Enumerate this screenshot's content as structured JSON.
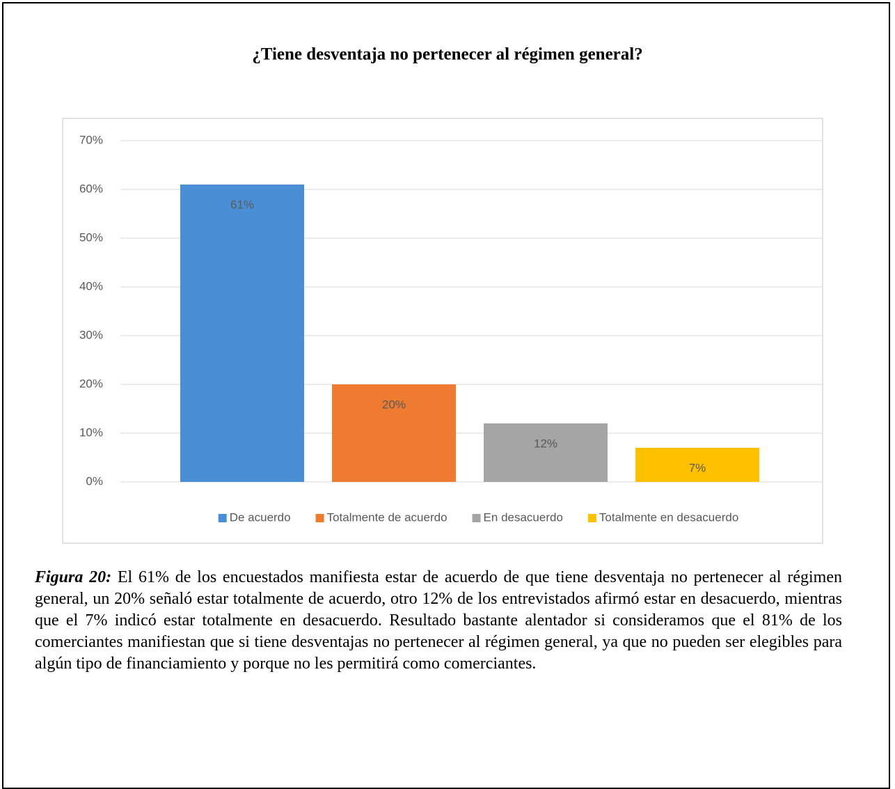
{
  "chart_data": {
    "type": "bar",
    "title": "¿Tiene desventaja no pertenecer al régimen general?",
    "categories": [
      "De acuerdo",
      "Totalmente de acuerdo",
      "En desacuerdo",
      "Totalmente en desacuerdo"
    ],
    "values": [
      61,
      20,
      12,
      7
    ],
    "value_labels": [
      "61%",
      "20%",
      "12%",
      "7%"
    ],
    "colors": [
      "#4a8fd6",
      "#ee7b30",
      "#a5a5a5",
      "#ffc000"
    ],
    "ylim": [
      0,
      70
    ],
    "yticks": [
      {
        "value": 0,
        "label": "0%"
      },
      {
        "value": 10,
        "label": "10%"
      },
      {
        "value": 20,
        "label": "20%"
      },
      {
        "value": 30,
        "label": "30%"
      },
      {
        "value": 40,
        "label": "40%"
      },
      {
        "value": 50,
        "label": "50%"
      },
      {
        "value": 60,
        "label": "60%"
      },
      {
        "value": 70,
        "label": "70%"
      }
    ],
    "grid": true,
    "legend": "bottom"
  },
  "caption": {
    "label": "Figura 20:",
    "text": "El 61% de los encuestados manifiesta estar de acuerdo de que tiene desventaja no pertenecer al régimen general, un 20% señaló estar totalmente de acuerdo, otro 12% de los entrevistados afirmó estar en desacuerdo, mientras que el 7% indicó estar totalmente en desacuerdo. Resultado bastante alentador si consideramos que el 81% de los comerciantes manifiestan que si tiene desventajas no pertenecer al régimen general, ya que no pueden ser elegibles para algún tipo de financiamiento y porque no les permitirá como comerciantes."
  }
}
